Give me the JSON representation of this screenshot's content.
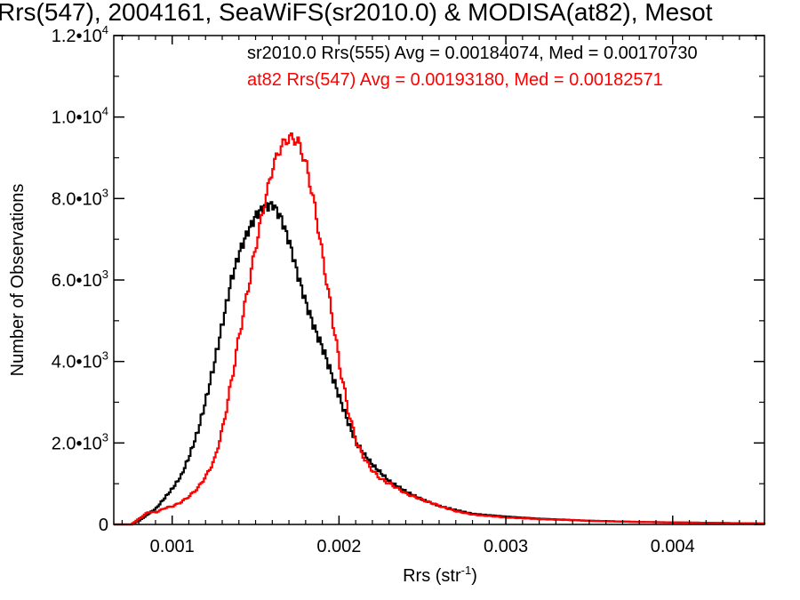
{
  "chart_data": {
    "type": "line",
    "title": "Rrs(547), 2004161, SeaWiFS(sr2010.0) & MODISA(at82), Mesot",
    "xlabel": "Rrs (str",
    "xlabel_sup": "-1",
    "xlabel_close": ")",
    "ylabel": "Number of Observations",
    "xlim": [
      0.00065,
      0.00455
    ],
    "ylim": [
      0,
      12000
    ],
    "x_ticks": [
      0.001,
      0.002,
      0.003,
      0.004
    ],
    "x_tick_labels": [
      "0.001",
      "0.002",
      "0.003",
      "0.004"
    ],
    "y_ticks": [
      0,
      2000,
      4000,
      6000,
      8000,
      10000,
      12000
    ],
    "y_tick_labels": [
      {
        "mant": "0",
        "exp": ""
      },
      {
        "mant": "2.0•10",
        "exp": "3"
      },
      {
        "mant": "4.0•10",
        "exp": "3"
      },
      {
        "mant": "6.0•10",
        "exp": "3"
      },
      {
        "mant": "8.0•10",
        "exp": "3"
      },
      {
        "mant": "1.0•10",
        "exp": "4"
      },
      {
        "mant": "1.2•10",
        "exp": "4"
      }
    ],
    "grid": false,
    "legend_position": "top-right",
    "series": [
      {
        "name": "sr2010.0 Rrs(555) Avg = 0.00184074, Med = 0.00170730",
        "color": "#000000",
        "points": [
          [
            0.00065,
            0
          ],
          [
            0.00075,
            0
          ],
          [
            0.0008,
            100
          ],
          [
            0.00085,
            250
          ],
          [
            0.0009,
            400
          ],
          [
            0.00095,
            650
          ],
          [
            0.001,
            900
          ],
          [
            0.00105,
            1200
          ],
          [
            0.0011,
            1700
          ],
          [
            0.00115,
            2300
          ],
          [
            0.0012,
            3100
          ],
          [
            0.00125,
            4000
          ],
          [
            0.0013,
            5000
          ],
          [
            0.00135,
            6000
          ],
          [
            0.0014,
            6700
          ],
          [
            0.00145,
            7200
          ],
          [
            0.0015,
            7600
          ],
          [
            0.00155,
            7800
          ],
          [
            0.0016,
            7850
          ],
          [
            0.00165,
            7500
          ],
          [
            0.0017,
            6900
          ],
          [
            0.00175,
            6100
          ],
          [
            0.0018,
            5400
          ],
          [
            0.00185,
            4800
          ],
          [
            0.0019,
            4300
          ],
          [
            0.00195,
            3700
          ],
          [
            0.002,
            3100
          ],
          [
            0.00205,
            2500
          ],
          [
            0.0021,
            2000
          ],
          [
            0.00215,
            1700
          ],
          [
            0.0022,
            1450
          ],
          [
            0.00225,
            1250
          ],
          [
            0.0023,
            1050
          ],
          [
            0.0024,
            800
          ],
          [
            0.0025,
            600
          ],
          [
            0.0026,
            450
          ],
          [
            0.0027,
            350
          ],
          [
            0.0028,
            260
          ],
          [
            0.003,
            190
          ],
          [
            0.0032,
            140
          ],
          [
            0.0035,
            90
          ],
          [
            0.0038,
            60
          ],
          [
            0.0042,
            40
          ],
          [
            0.00455,
            20
          ]
        ]
      },
      {
        "name": "at82 Rrs(547) Avg = 0.00193180, Med = 0.00182571",
        "color": "#ff0000",
        "points": [
          [
            0.00065,
            0
          ],
          [
            0.00075,
            0
          ],
          [
            0.0008,
            150
          ],
          [
            0.00085,
            300
          ],
          [
            0.0009,
            300
          ],
          [
            0.00095,
            400
          ],
          [
            0.001,
            450
          ],
          [
            0.00105,
            550
          ],
          [
            0.0011,
            700
          ],
          [
            0.00115,
            900
          ],
          [
            0.0012,
            1200
          ],
          [
            0.00125,
            1600
          ],
          [
            0.0013,
            2400
          ],
          [
            0.00135,
            3500
          ],
          [
            0.0014,
            4700
          ],
          [
            0.00145,
            5800
          ],
          [
            0.0015,
            6900
          ],
          [
            0.00155,
            7900
          ],
          [
            0.0016,
            8800
          ],
          [
            0.00165,
            9300
          ],
          [
            0.0017,
            9500
          ],
          [
            0.00175,
            9400
          ],
          [
            0.0018,
            8800
          ],
          [
            0.00185,
            7800
          ],
          [
            0.0019,
            6500
          ],
          [
            0.00195,
            5200
          ],
          [
            0.002,
            3900
          ],
          [
            0.00205,
            2800
          ],
          [
            0.0021,
            2000
          ],
          [
            0.00215,
            1600
          ],
          [
            0.0022,
            1300
          ],
          [
            0.00225,
            1100
          ],
          [
            0.0023,
            1000
          ],
          [
            0.0024,
            750
          ],
          [
            0.0025,
            600
          ],
          [
            0.0026,
            450
          ],
          [
            0.0027,
            320
          ],
          [
            0.0028,
            240
          ],
          [
            0.003,
            170
          ],
          [
            0.0032,
            130
          ],
          [
            0.0035,
            90
          ],
          [
            0.0038,
            60
          ],
          [
            0.0042,
            40
          ],
          [
            0.00455,
            25
          ]
        ]
      }
    ]
  }
}
